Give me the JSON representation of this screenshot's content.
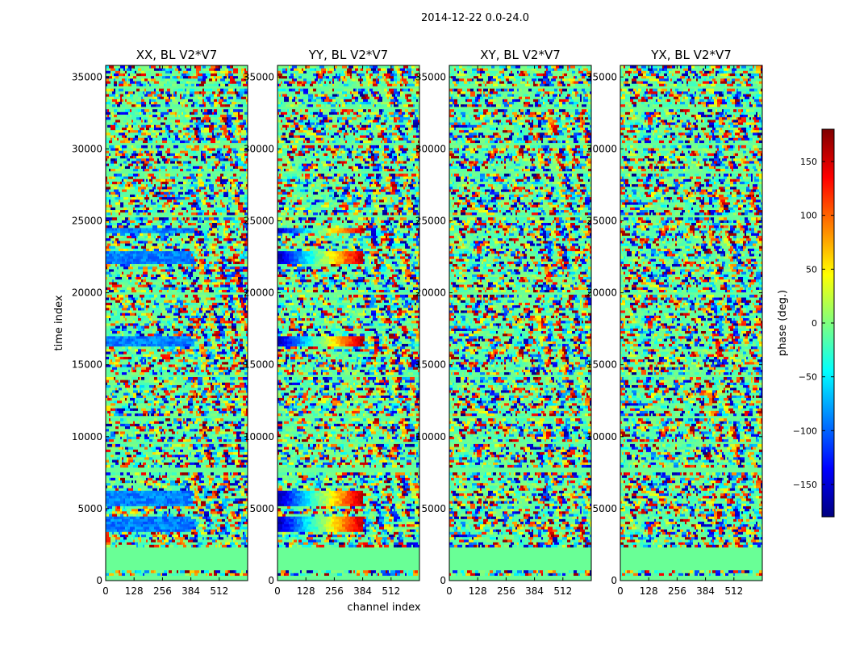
{
  "figure": {
    "suptitle": "2014-12-22 0.0-24.0"
  },
  "chart_data": {
    "type": "heatmap",
    "title": "2014-12-22 0.0-24.0",
    "xlabel": "channel index",
    "ylabel": "time index",
    "xlim": [
      0,
      640
    ],
    "ylim": [
      0,
      35800
    ],
    "xticks": [
      0,
      128,
      256,
      384,
      512
    ],
    "yticks": [
      0,
      5000,
      10000,
      15000,
      20000,
      25000,
      30000,
      35000
    ],
    "value_range": [
      -180,
      180
    ],
    "colorbar": {
      "label": "phase (deg.)",
      "ticks": [
        150,
        100,
        50,
        0,
        -50,
        -100,
        -150
      ],
      "colormap": "jet",
      "colors": [
        "#00007f",
        "#0000ff",
        "#007fff",
        "#00ffff",
        "#7fff7f",
        "#ffff00",
        "#ff7f00",
        "#ff0000",
        "#7f0000"
      ]
    },
    "panels": [
      {
        "name": "xx",
        "title": "XX, BL V2*V7",
        "phase_offset": -90,
        "coherent_blocks": [
          [
            3400,
            4400
          ],
          [
            5200,
            6200
          ],
          [
            16300,
            17000
          ],
          [
            22100,
            22900
          ],
          [
            24200,
            24600
          ]
        ]
      },
      {
        "name": "yy",
        "title": "YY, BL V2*V7",
        "phase_offset": 0,
        "coherent_blocks": [
          [
            3400,
            4400
          ],
          [
            5200,
            6200
          ],
          [
            16300,
            17000
          ],
          [
            22100,
            22900
          ],
          [
            24200,
            24600
          ]
        ]
      },
      {
        "name": "xy",
        "title": "XY, BL V2*V7",
        "phase_offset": 0,
        "coherent_blocks": []
      },
      {
        "name": "yx",
        "title": "YX, BL V2*V7",
        "phase_offset": 0,
        "coherent_blocks": []
      }
    ]
  }
}
